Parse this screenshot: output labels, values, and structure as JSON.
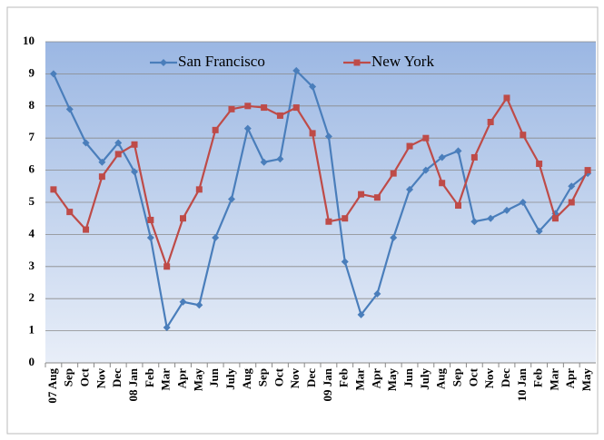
{
  "chart_data": {
    "type": "line",
    "categories": [
      "07 Aug",
      "Sep",
      "Oct",
      "Nov",
      "Dec",
      "08 Jan",
      "Feb",
      "Mar",
      "Apr",
      "May",
      "Jun",
      "July",
      "Aug",
      "Sep",
      "Oct",
      "Nov",
      "Dec",
      "09 Jan",
      "Feb",
      "Mar",
      "Apr",
      "May",
      "Jun",
      "July",
      "Aug",
      "Sep",
      "Oct",
      "Nov",
      "Dec",
      "10 Jan",
      "Feb",
      "Mar",
      "Apr",
      "May"
    ],
    "series": [
      {
        "name": "San Francisco",
        "color": "#4a7ebb",
        "marker": "diamond",
        "values": [
          9,
          7.9,
          6.85,
          6.25,
          6.85,
          5.95,
          3.9,
          1.1,
          1.9,
          1.8,
          3.9,
          5.1,
          7.3,
          6.25,
          6.35,
          9.1,
          8.6,
          7.05,
          3.15,
          1.5,
          2.15,
          3.9,
          5.4,
          6.0,
          6.4,
          6.6,
          4.4,
          4.5,
          4.75,
          5.0,
          4.1,
          4.65,
          5.5,
          5.9
        ]
      },
      {
        "name": "New York",
        "color": "#be4b48",
        "marker": "square",
        "values": [
          5.4,
          4.7,
          4.15,
          5.8,
          6.5,
          6.8,
          4.45,
          3.0,
          4.5,
          5.4,
          7.25,
          7.9,
          8.0,
          7.95,
          7.7,
          7.95,
          7.15,
          4.4,
          4.5,
          5.25,
          5.15,
          5.9,
          6.75,
          7.0,
          5.6,
          4.9,
          6.4,
          7.5,
          8.25,
          7.1,
          6.2,
          4.5,
          5.0,
          6.0
        ]
      }
    ],
    "ylim": [
      0,
      10
    ],
    "yticks": [
      0,
      1,
      2,
      3,
      4,
      5,
      6,
      7,
      8,
      9,
      10
    ],
    "grid": true,
    "legend": "top"
  }
}
